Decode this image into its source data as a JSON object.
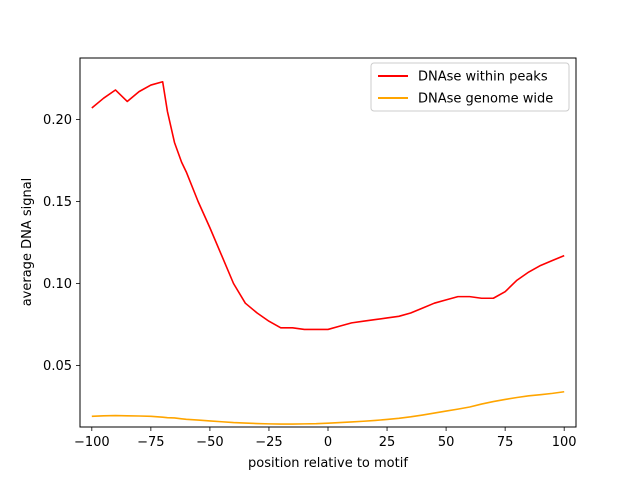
{
  "chart_data": {
    "type": "line",
    "xlabel": "position relative to motif",
    "ylabel": "average DNA signal",
    "xlim": [
      -105,
      105
    ],
    "ylim": [
      0.0125,
      0.2375
    ],
    "xticks": [
      -100,
      -75,
      -50,
      -25,
      0,
      25,
      50,
      75,
      100
    ],
    "xtick_labels": [
      "−100",
      "−75",
      "−50",
      "−25",
      "0",
      "25",
      "50",
      "75",
      "100"
    ],
    "yticks": [
      0.05,
      0.1,
      0.15,
      0.2
    ],
    "ytick_labels": [
      "0.05",
      "0.10",
      "0.15",
      "0.20"
    ],
    "grid": false,
    "legend_position": "top-right",
    "x": [
      -100,
      -95,
      -90,
      -85,
      -80,
      -75,
      -70,
      -68,
      -65,
      -62,
      -60,
      -55,
      -50,
      -45,
      -40,
      -35,
      -30,
      -25,
      -20,
      -15,
      -10,
      -5,
      0,
      5,
      10,
      15,
      20,
      25,
      30,
      35,
      40,
      45,
      50,
      55,
      60,
      65,
      70,
      75,
      80,
      85,
      90,
      95,
      100
    ],
    "series": [
      {
        "name": "DNAse within peaks",
        "color": "#ff0000",
        "values": [
          0.207,
          0.213,
          0.218,
          0.211,
          0.217,
          0.221,
          0.223,
          0.205,
          0.186,
          0.174,
          0.168,
          0.15,
          0.134,
          0.117,
          0.1,
          0.088,
          0.082,
          0.077,
          0.073,
          0.073,
          0.072,
          0.072,
          0.072,
          0.074,
          0.076,
          0.077,
          0.078,
          0.079,
          0.08,
          0.082,
          0.085,
          0.088,
          0.09,
          0.092,
          0.092,
          0.091,
          0.091,
          0.095,
          0.102,
          0.107,
          0.111,
          0.114,
          0.117
        ]
      },
      {
        "name": "DNAse genome wide",
        "color": "#ffa500",
        "values": [
          0.019,
          0.0193,
          0.0195,
          0.0193,
          0.0192,
          0.019,
          0.0185,
          0.0182,
          0.018,
          0.0175,
          0.0172,
          0.0167,
          0.0162,
          0.0157,
          0.0152,
          0.0149,
          0.0146,
          0.0144,
          0.0143,
          0.0143,
          0.0144,
          0.0145,
          0.0148,
          0.0152,
          0.0156,
          0.016,
          0.0165,
          0.0171,
          0.0178,
          0.0187,
          0.0198,
          0.021,
          0.0222,
          0.0234,
          0.0247,
          0.0265,
          0.028,
          0.0293,
          0.0305,
          0.0315,
          0.0322,
          0.033,
          0.034
        ]
      }
    ]
  }
}
